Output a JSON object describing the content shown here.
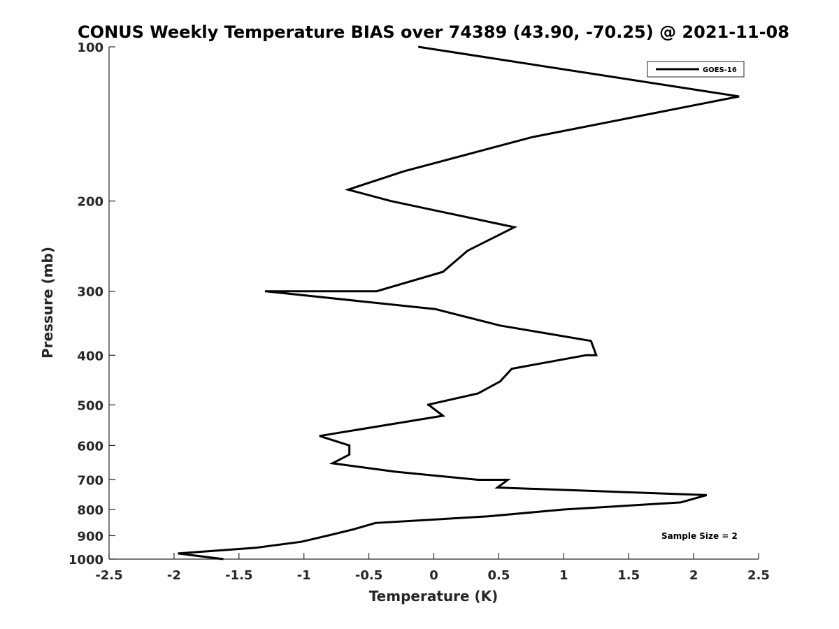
{
  "chart_data": {
    "type": "line",
    "title": "CONUS Weekly Temperature BIAS over 74389 (43.90, -70.25) @ 2021-11-08",
    "xlabel": "Temperature (K)",
    "ylabel": "Pressure (mb)",
    "xlim": [
      -2.5,
      2.5
    ],
    "ylim": [
      100,
      1000
    ],
    "y_scale": "log",
    "y_reversed": true,
    "x_ticks": [
      -2.5,
      -2,
      -1.5,
      -1,
      -0.5,
      0,
      0.5,
      1,
      1.5,
      2,
      2.5
    ],
    "x_tick_labels": [
      "-2.5",
      "-2",
      "-1.5",
      "-1",
      "-0.5",
      "0",
      "0.5",
      "1",
      "1.5",
      "2",
      "2.5"
    ],
    "y_ticks": [
      100,
      200,
      300,
      400,
      500,
      600,
      700,
      800,
      900,
      1000
    ],
    "y_tick_labels": [
      "100",
      "200",
      "300",
      "400",
      "500",
      "600",
      "700",
      "800",
      "900",
      "1000"
    ],
    "grid": false,
    "legend_position": "top-right",
    "series": [
      {
        "name": "GOES-16",
        "color": "#000000",
        "points": [
          {
            "x": -0.12,
            "y": 100
          },
          {
            "x": 2.35,
            "y": 125
          },
          {
            "x": 0.76,
            "y": 150
          },
          {
            "x": -0.23,
            "y": 175
          },
          {
            "x": -0.66,
            "y": 190
          },
          {
            "x": -0.33,
            "y": 200
          },
          {
            "x": 0.62,
            "y": 225
          },
          {
            "x": 0.26,
            "y": 250
          },
          {
            "x": 0.07,
            "y": 275
          },
          {
            "x": -0.44,
            "y": 300
          },
          {
            "x": -1.3,
            "y": 300
          },
          {
            "x": 0.01,
            "y": 325
          },
          {
            "x": 0.51,
            "y": 350
          },
          {
            "x": 1.21,
            "y": 375
          },
          {
            "x": 1.25,
            "y": 400
          },
          {
            "x": 1.17,
            "y": 400
          },
          {
            "x": 0.6,
            "y": 425
          },
          {
            "x": 0.51,
            "y": 450
          },
          {
            "x": 0.34,
            "y": 475
          },
          {
            "x": -0.05,
            "y": 500
          },
          {
            "x": -0.04,
            "y": 500
          },
          {
            "x": 0.07,
            "y": 525
          },
          {
            "x": -0.88,
            "y": 575
          },
          {
            "x": -0.65,
            "y": 600
          },
          {
            "x": -0.65,
            "y": 625
          },
          {
            "x": -0.78,
            "y": 650
          },
          {
            "x": -0.3,
            "y": 675
          },
          {
            "x": 0.34,
            "y": 700
          },
          {
            "x": 0.57,
            "y": 700
          },
          {
            "x": 0.49,
            "y": 725
          },
          {
            "x": 2.1,
            "y": 750
          },
          {
            "x": 1.9,
            "y": 775
          },
          {
            "x": 1.0,
            "y": 800
          },
          {
            "x": 0.42,
            "y": 825
          },
          {
            "x": -0.45,
            "y": 850
          },
          {
            "x": -0.62,
            "y": 875
          },
          {
            "x": -0.82,
            "y": 900
          },
          {
            "x": -1.02,
            "y": 925
          },
          {
            "x": -1.37,
            "y": 950
          },
          {
            "x": -1.97,
            "y": 975
          },
          {
            "x": -1.62,
            "y": 1000
          }
        ]
      }
    ],
    "annotation": "Sample Size = 2"
  }
}
